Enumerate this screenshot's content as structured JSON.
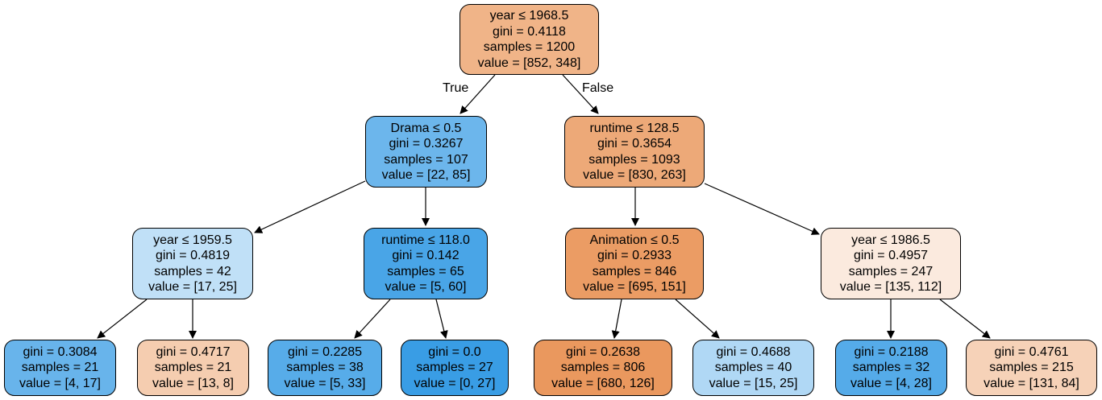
{
  "tree": {
    "branch_true": "True",
    "branch_false": "False",
    "nodes": [
      {
        "id": "n0",
        "lines": [
          "year ≤ 1968.5",
          "gini = 0.4118",
          "samples = 1200",
          "value = [852, 348]"
        ],
        "color": "#f0b488"
      },
      {
        "id": "n1",
        "lines": [
          "Drama ≤ 0.5",
          "gini = 0.3267",
          "samples = 107",
          "value = [22, 85]"
        ],
        "color": "#6cb6ec"
      },
      {
        "id": "n2",
        "lines": [
          "runtime ≤ 128.5",
          "gini = 0.3654",
          "samples = 1093",
          "value = [830, 263]"
        ],
        "color": "#eda978"
      },
      {
        "id": "n3",
        "lines": [
          "year ≤ 1959.5",
          "gini = 0.4819",
          "samples = 42",
          "value = [17, 25]"
        ],
        "color": "#c0e0f7"
      },
      {
        "id": "n4",
        "lines": [
          "runtime ≤ 118.0",
          "gini = 0.142",
          "samples = 65",
          "value = [5, 60]"
        ],
        "color": "#49a5e7"
      },
      {
        "id": "n5",
        "lines": [
          "Animation ≤ 0.5",
          "gini = 0.2933",
          "samples = 846",
          "value = [695, 151]"
        ],
        "color": "#eb9c64"
      },
      {
        "id": "n6",
        "lines": [
          "year ≤ 1986.5",
          "gini = 0.4957",
          "samples = 247",
          "value = [135, 112]"
        ],
        "color": "#fbeade"
      },
      {
        "id": "n7",
        "lines": [
          "gini = 0.3084",
          "samples = 21",
          "value = [4, 17]"
        ],
        "color": "#68b4eb"
      },
      {
        "id": "n8",
        "lines": [
          "gini = 0.4717",
          "samples = 21",
          "value = [13, 8]"
        ],
        "color": "#f5cdb0"
      },
      {
        "id": "n9",
        "lines": [
          "gini = 0.2285",
          "samples = 38",
          "value = [5, 33]"
        ],
        "color": "#57ace9"
      },
      {
        "id": "n10",
        "lines": [
          "gini = 0.0",
          "samples = 27",
          "value = [0, 27]"
        ],
        "color": "#399de5"
      },
      {
        "id": "n11",
        "lines": [
          "gini = 0.2638",
          "samples = 806",
          "value = [680, 126]"
        ],
        "color": "#ea985e"
      },
      {
        "id": "n12",
        "lines": [
          "gini = 0.4688",
          "samples = 40",
          "value = [15, 25]"
        ],
        "color": "#b0d8f5"
      },
      {
        "id": "n13",
        "lines": [
          "gini = 0.2188",
          "samples = 32",
          "value = [4, 28]"
        ],
        "color": "#55abe9"
      },
      {
        "id": "n14",
        "lines": [
          "gini = 0.4761",
          "samples = 215",
          "value = [131, 84]"
        ],
        "color": "#f6d2b8"
      }
    ],
    "edges": [
      [
        "n0",
        "n1"
      ],
      [
        "n0",
        "n2"
      ],
      [
        "n1",
        "n3"
      ],
      [
        "n1",
        "n4"
      ],
      [
        "n2",
        "n5"
      ],
      [
        "n2",
        "n6"
      ],
      [
        "n3",
        "n7"
      ],
      [
        "n3",
        "n8"
      ],
      [
        "n4",
        "n9"
      ],
      [
        "n4",
        "n10"
      ],
      [
        "n5",
        "n11"
      ],
      [
        "n5",
        "n12"
      ],
      [
        "n6",
        "n13"
      ],
      [
        "n6",
        "n14"
      ]
    ]
  }
}
